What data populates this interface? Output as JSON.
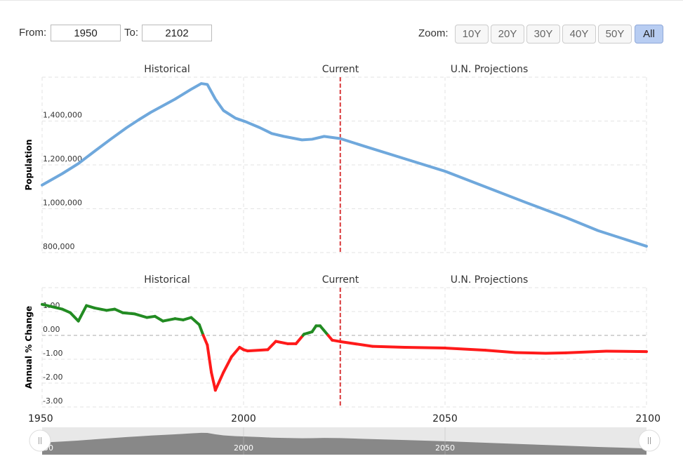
{
  "range": {
    "from_label": "From:",
    "from_value": "1950",
    "to_label": "To:",
    "to_value": "2102"
  },
  "zoom": {
    "label": "Zoom:",
    "buttons": [
      "10Y",
      "20Y",
      "30Y",
      "40Y",
      "50Y",
      "All"
    ],
    "active": "All"
  },
  "colors": {
    "population": "#6fa8dc",
    "growth_positive": "#228b22",
    "growth_negative": "#ff1a1a",
    "current_line": "#d9383a",
    "navigator_fill": "#888888"
  },
  "chart_data": [
    {
      "type": "line",
      "title": "",
      "xlabel": "",
      "ylabel": "Population",
      "section_labels": [
        "Historical",
        "Current",
        "U.N. Projections"
      ],
      "current_year": 2024,
      "xlim": [
        1950,
        2100
      ],
      "ylim": [
        780000,
        1600000
      ],
      "yticks": [
        800000,
        1000000,
        1200000,
        1400000
      ],
      "ytick_labels": [
        "800,000",
        "1,000,000",
        "1,200,000",
        "1,400,000"
      ],
      "x": [
        1950,
        1955,
        1959,
        1963,
        1967,
        1971,
        1974,
        1977,
        1980,
        1983,
        1987,
        1989.5,
        1991,
        1993,
        1995,
        1998,
        2000.5,
        2004,
        2007,
        2010,
        2014.5,
        2017,
        2020,
        2024,
        2030,
        2040,
        2050,
        2060,
        2070,
        2080,
        2088,
        2100
      ],
      "values": [
        1108000,
        1160000,
        1206000,
        1262000,
        1317000,
        1370000,
        1406000,
        1440000,
        1470000,
        1500000,
        1545000,
        1571000,
        1567000,
        1500000,
        1448000,
        1413000,
        1397000,
        1370000,
        1343000,
        1330000,
        1314000,
        1317000,
        1330000,
        1320000,
        1285000,
        1228000,
        1171000,
        1100000,
        1029000,
        960000,
        900000,
        829000
      ]
    },
    {
      "type": "line",
      "title": "",
      "xlabel": "",
      "ylabel": "Annual % Change",
      "section_labels": [
        "Historical",
        "Current",
        "U.N. Projections"
      ],
      "current_year": 2024,
      "xlim": [
        1950,
        2100
      ],
      "ylim": [
        -3.05,
        2.0
      ],
      "yticks": [
        1,
        0,
        -1,
        -2,
        -3
      ],
      "ytick_labels": [
        "1.00",
        "0.00",
        "-1.00",
        "-2.00",
        "-3.00"
      ],
      "xtick_labels": [
        "1950",
        "2000",
        "2050",
        "2100"
      ],
      "x": [
        1950,
        1955,
        1957,
        1959,
        1961,
        1963,
        1966,
        1968,
        1970,
        1973,
        1976,
        1978,
        1980,
        1983,
        1985,
        1987,
        1989,
        1990,
        1991,
        1992,
        1993,
        1995,
        1997,
        1999,
        2000,
        2001,
        2006,
        2008,
        2011,
        2013,
        2015,
        2017,
        2018,
        2019,
        2021,
        2022,
        2024,
        2032,
        2040,
        2050,
        2060,
        2067.5,
        2075,
        2080,
        2090,
        2100
      ],
      "values": [
        1.3,
        1.1,
        0.95,
        0.6,
        1.25,
        1.15,
        1.05,
        1.1,
        0.95,
        0.9,
        0.75,
        0.8,
        0.6,
        0.7,
        0.65,
        0.75,
        0.45,
        0.0,
        -0.4,
        -1.55,
        -2.3,
        -1.55,
        -0.9,
        -0.5,
        -0.6,
        -0.65,
        -0.6,
        -0.25,
        -0.35,
        -0.35,
        0.05,
        0.15,
        0.4,
        0.4,
        0.0,
        -0.2,
        -0.26,
        -0.46,
        -0.5,
        -0.53,
        -0.62,
        -0.72,
        -0.75,
        -0.73,
        -0.66,
        -0.68
      ]
    }
  ],
  "navigator": {
    "tick_labels": [
      "1950",
      "2000",
      "2050"
    ]
  }
}
